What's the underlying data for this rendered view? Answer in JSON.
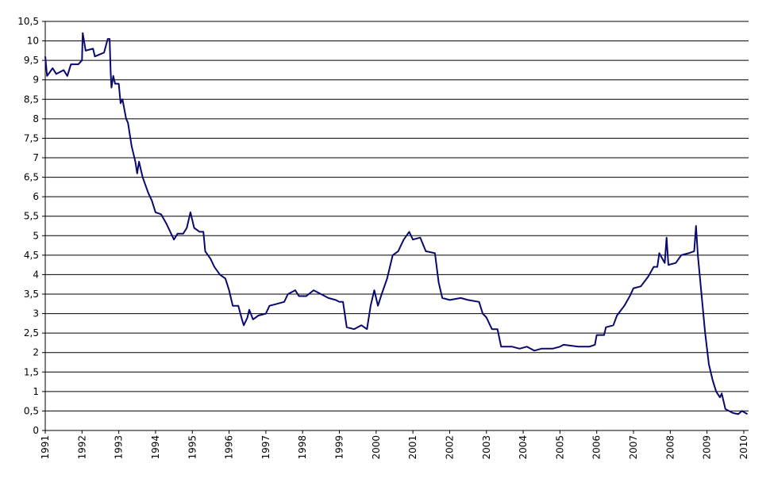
{
  "chart_data": {
    "type": "line",
    "xlim": [
      1991,
      2010.13
    ],
    "xticks": [
      1991,
      1992,
      1993,
      1994,
      1995,
      1996,
      1997,
      1998,
      1999,
      2000,
      2001,
      2002,
      2003,
      2004,
      2005,
      2006,
      2007,
      2008,
      2009,
      2010
    ],
    "ylim": [
      0,
      10.5
    ],
    "yticks": [
      0,
      {
        "value": 0.5,
        "label": "0,5"
      },
      1,
      {
        "value": 1.5,
        "label": "1,5"
      },
      2,
      {
        "value": 2.5,
        "label": "2,5"
      },
      3,
      {
        "value": 3.5,
        "label": "3,5"
      },
      4,
      {
        "value": 4.5,
        "label": "4,5"
      },
      5,
      {
        "value": 5.5,
        "label": "5,5"
      },
      6,
      {
        "value": 6.5,
        "label": "6,5"
      },
      7,
      {
        "value": 7.5,
        "label": "7,5"
      },
      8,
      {
        "value": 8.5,
        "label": "8,5"
      },
      9,
      {
        "value": 9.5,
        "label": "9,5"
      },
      10,
      {
        "value": 10.5,
        "label": "10,5"
      }
    ],
    "grid": true,
    "series": [
      {
        "color": "#0a0a6e",
        "x": [
          1991.0,
          1991.05,
          1991.2,
          1991.3,
          1991.5,
          1991.6,
          1991.7,
          1991.9,
          1992.0,
          1992.02,
          1992.1,
          1992.3,
          1992.35,
          1992.6,
          1992.7,
          1992.75,
          1992.78,
          1992.8,
          1992.85,
          1992.9,
          1993.0,
          1993.05,
          1993.1,
          1993.2,
          1993.25,
          1993.35,
          1993.45,
          1993.5,
          1993.55,
          1993.65,
          1993.8,
          1993.9,
          1994.0,
          1994.15,
          1994.3,
          1994.4,
          1994.5,
          1994.6,
          1994.75,
          1994.85,
          1994.95,
          1995.05,
          1995.2,
          1995.3,
          1995.35,
          1995.5,
          1995.6,
          1995.75,
          1995.9,
          1996.0,
          1996.1,
          1996.25,
          1996.35,
          1996.4,
          1996.5,
          1996.55,
          1996.65,
          1996.8,
          1997.0,
          1997.1,
          1997.3,
          1997.5,
          1997.6,
          1997.8,
          1997.9,
          1998.1,
          1998.3,
          1998.5,
          1998.7,
          1998.9,
          1999.0,
          1999.1,
          1999.2,
          1999.4,
          1999.6,
          1999.75,
          1999.85,
          1999.95,
          2000.05,
          2000.15,
          2000.3,
          2000.45,
          2000.6,
          2000.75,
          2000.9,
          2001.0,
          2001.2,
          2001.35,
          2001.6,
          2001.7,
          2001.8,
          2002.0,
          2002.3,
          2002.5,
          2002.8,
          2002.9,
          2003.0,
          2003.15,
          2003.3,
          2003.4,
          2003.7,
          2003.9,
          2004.1,
          2004.3,
          2004.5,
          2004.8,
          2005.0,
          2005.1,
          2005.5,
          2005.8,
          2005.95,
          2006.0,
          2006.2,
          2006.25,
          2006.45,
          2006.55,
          2006.75,
          2006.9,
          2007.0,
          2007.2,
          2007.4,
          2007.55,
          2007.65,
          2007.7,
          2007.85,
          2007.9,
          2007.95,
          2008.15,
          2008.3,
          2008.5,
          2008.65,
          2008.7,
          2008.75,
          2008.85,
          2008.95,
          2009.05,
          2009.15,
          2009.25,
          2009.35,
          2009.4,
          2009.5,
          2009.7,
          2009.85,
          2009.95,
          2010.1
        ],
        "values": [
          9.6,
          9.1,
          9.3,
          9.15,
          9.25,
          9.1,
          9.4,
          9.4,
          9.5,
          10.2,
          9.75,
          9.8,
          9.6,
          9.7,
          10.05,
          10.05,
          9.2,
          8.8,
          9.1,
          8.9,
          8.9,
          8.4,
          8.5,
          8.0,
          7.9,
          7.3,
          6.9,
          6.6,
          6.9,
          6.5,
          6.1,
          5.9,
          5.6,
          5.55,
          5.3,
          5.1,
          4.9,
          5.05,
          5.05,
          5.2,
          5.6,
          5.2,
          5.1,
          5.1,
          4.6,
          4.4,
          4.2,
          4.0,
          3.9,
          3.6,
          3.2,
          3.2,
          2.85,
          2.7,
          2.9,
          3.1,
          2.85,
          2.95,
          3.0,
          3.2,
          3.25,
          3.3,
          3.5,
          3.6,
          3.45,
          3.45,
          3.6,
          3.5,
          3.4,
          3.35,
          3.3,
          3.3,
          2.65,
          2.6,
          2.7,
          2.6,
          3.2,
          3.6,
          3.2,
          3.5,
          3.9,
          4.5,
          4.6,
          4.9,
          5.1,
          4.9,
          4.95,
          4.6,
          4.55,
          3.8,
          3.4,
          3.35,
          3.4,
          3.35,
          3.3,
          3.0,
          2.9,
          2.6,
          2.6,
          2.15,
          2.15,
          2.1,
          2.15,
          2.05,
          2.1,
          2.1,
          2.15,
          2.2,
          2.15,
          2.15,
          2.2,
          2.45,
          2.45,
          2.65,
          2.7,
          2.95,
          3.2,
          3.45,
          3.65,
          3.7,
          3.95,
          4.2,
          4.2,
          4.55,
          4.3,
          4.95,
          4.25,
          4.3,
          4.5,
          4.55,
          4.6,
          5.25,
          4.5,
          3.5,
          2.5,
          1.7,
          1.3,
          1.0,
          0.85,
          0.95,
          0.55,
          0.45,
          0.42,
          0.5,
          0.42
        ]
      }
    ]
  }
}
